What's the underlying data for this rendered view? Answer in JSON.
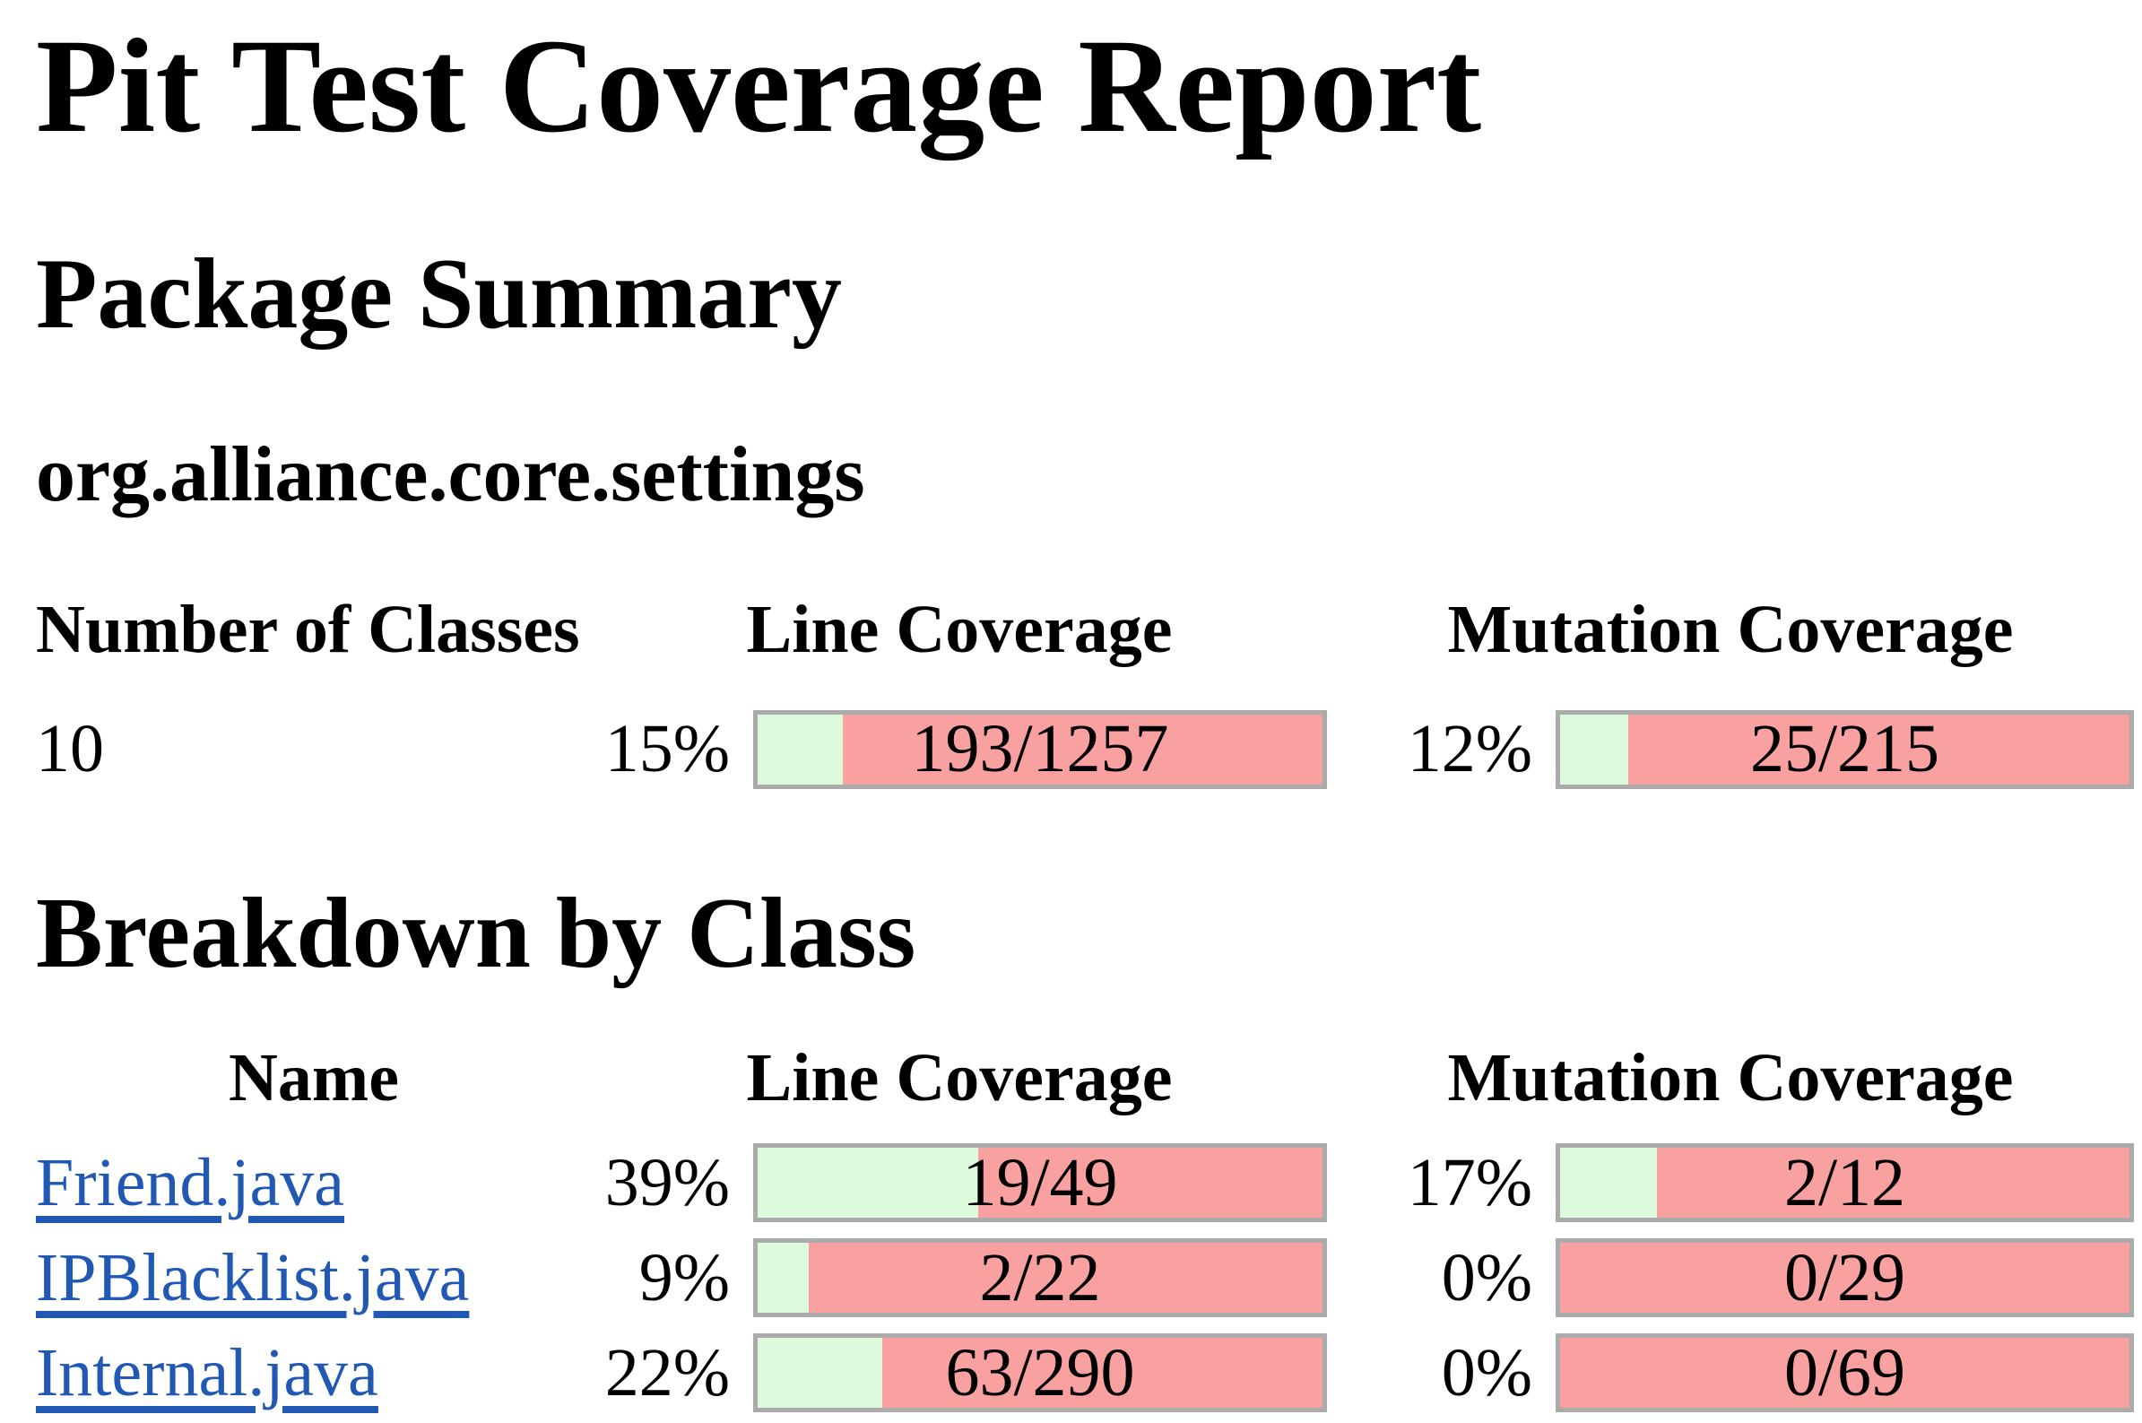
{
  "page": {
    "title": "Pit Test Coverage Report",
    "package_summary_heading": "Package Summary",
    "package_name": "org.alliance.core.settings",
    "breakdown_heading": "Breakdown by Class"
  },
  "summary_table": {
    "headers": [
      "Number of Classes",
      "Line Coverage",
      "Mutation Coverage"
    ],
    "row": {
      "number_of_classes": "10",
      "line": {
        "pct_label": "15%",
        "pct": 15,
        "legend": "193/1257"
      },
      "mutation": {
        "pct_label": "12%",
        "pct": 12,
        "legend": "25/215"
      }
    }
  },
  "class_table": {
    "headers": [
      "Name",
      "Line Coverage",
      "Mutation Coverage"
    ],
    "rows": [
      {
        "name": "Friend.java",
        "line": {
          "pct_label": "39%",
          "pct": 39,
          "legend": "19/49"
        },
        "mutation": {
          "pct_label": "17%",
          "pct": 17,
          "legend": "2/12"
        }
      },
      {
        "name": "IPBlacklist.java",
        "line": {
          "pct_label": "9%",
          "pct": 9,
          "legend": "2/22"
        },
        "mutation": {
          "pct_label": "0%",
          "pct": 0,
          "legend": "0/29"
        }
      },
      {
        "name": "Internal.java",
        "line": {
          "pct_label": "22%",
          "pct": 22,
          "legend": "63/290"
        },
        "mutation": {
          "pct_label": "0%",
          "pct": 0,
          "legend": "0/69"
        }
      }
    ]
  },
  "colors": {
    "covered_green": "#ddfadd",
    "uncovered_pink": "#f9a1a1",
    "bar_border_gray": "#ababab",
    "link_blue": "#2058b4"
  }
}
